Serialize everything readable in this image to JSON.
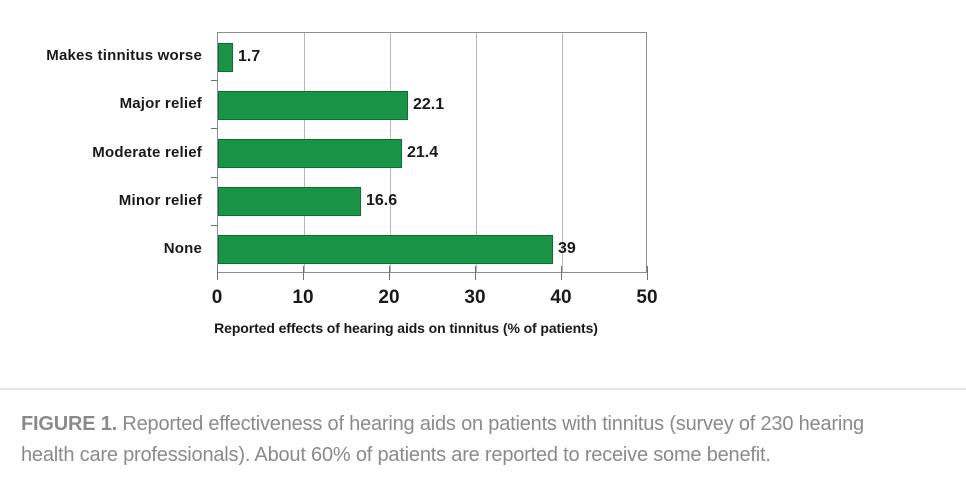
{
  "chart_data": {
    "type": "bar",
    "orientation": "horizontal",
    "categories": [
      "Makes tinnitus worse",
      "Major relief",
      "Moderate relief",
      "Minor relief",
      "None"
    ],
    "values": [
      1.7,
      22.1,
      21.4,
      16.6,
      39
    ],
    "value_labels": [
      "1.7",
      "22.1",
      "21.4",
      "16.6",
      "39"
    ],
    "title": "",
    "xlabel": "Reported effects of hearing aids on tinnitus (% of patients)",
    "ylabel": "",
    "xlim": [
      0,
      50
    ],
    "xticks": [
      0,
      10,
      20,
      30,
      40,
      50
    ],
    "grid": true,
    "legend": "none",
    "bar_color": "#199447",
    "bar_border_color": "#0b7033"
  },
  "caption": {
    "label": "FIGURE 1.",
    "line1": "Reported effectiveness of hearing aids on patients with tinnitus (survey of 230 hearing",
    "line2": "health care professionals). About 60% of patients are reported to receive some benefit.",
    "full_text": "FIGURE 1. Reported effectiveness of hearing aids on patients with tinnitus (survey of 230 hearing health care professionals). About 60% of patients are reported to receive some benefit."
  }
}
